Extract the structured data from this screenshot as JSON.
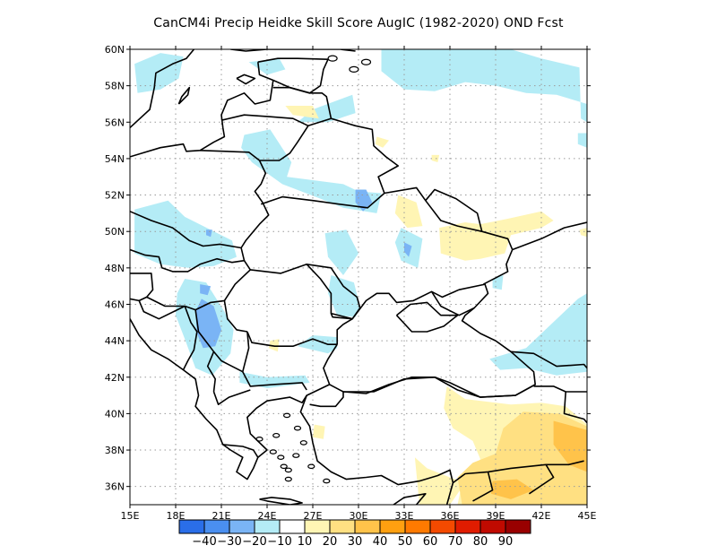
{
  "title": "CanCM4i Precip Heidke Skill Score AugIC (1982-2020) OND Fcst",
  "map": {
    "lon_range": [
      15,
      45
    ],
    "lat_range": [
      35,
      60
    ],
    "grid": "dotted",
    "lon_ticks": [
      {
        "value": 15,
        "label": "15E"
      },
      {
        "value": 18,
        "label": "18E"
      },
      {
        "value": 21,
        "label": "21E"
      },
      {
        "value": 24,
        "label": "24E"
      },
      {
        "value": 27,
        "label": "27E"
      },
      {
        "value": 30,
        "label": "30E"
      },
      {
        "value": 33,
        "label": "33E"
      },
      {
        "value": 36,
        "label": "36E"
      },
      {
        "value": 39,
        "label": "39E"
      },
      {
        "value": 42,
        "label": "42E"
      },
      {
        "value": 45,
        "label": "45E"
      }
    ],
    "lat_ticks": [
      {
        "value": 36,
        "label": "36N"
      },
      {
        "value": 38,
        "label": "38N"
      },
      {
        "value": 40,
        "label": "40N"
      },
      {
        "value": 42,
        "label": "42N"
      },
      {
        "value": 44,
        "label": "44N"
      },
      {
        "value": 46,
        "label": "46N"
      },
      {
        "value": 48,
        "label": "48N"
      },
      {
        "value": 50,
        "label": "50N"
      },
      {
        "value": 52,
        "label": "52N"
      },
      {
        "value": 54,
        "label": "54N"
      },
      {
        "value": 56,
        "label": "56N"
      },
      {
        "value": 58,
        "label": "58N"
      },
      {
        "value": 60,
        "label": "60N"
      }
    ]
  },
  "colorbar": {
    "bins": [
      {
        "color": "#2a6ee8"
      },
      {
        "color": "#4a8ff0"
      },
      {
        "color": "#7ab4f5"
      },
      {
        "color": "#b4ecf6"
      },
      {
        "color": "#ffffff"
      },
      {
        "color": "#fff5b4"
      },
      {
        "color": "#ffe082"
      },
      {
        "color": "#ffc34a"
      },
      {
        "color": "#ffa010"
      },
      {
        "color": "#ff7a00"
      },
      {
        "color": "#f44a00"
      },
      {
        "color": "#e01c00"
      },
      {
        "color": "#c00a00"
      },
      {
        "color": "#990000"
      }
    ],
    "labels": [
      "-40",
      "-30",
      "-20",
      "-10",
      "10",
      "20",
      "30",
      "40",
      "50",
      "60",
      "70",
      "80",
      "90"
    ]
  },
  "shading": {
    "colors": {
      "neg10": "#b4ecf6",
      "neg20": "#7ab4f5",
      "pos10": "#fff5b4",
      "pos20": "#ffe082",
      "pos30": "#ffc34a"
    },
    "regions": [
      {
        "level": "neg10",
        "pts": [
          [
            44.5,
            59.0
          ],
          [
            42,
            59.5
          ],
          [
            40,
            60
          ],
          [
            31.5,
            60
          ],
          [
            31.5,
            58.8
          ],
          [
            33,
            57.8
          ],
          [
            35,
            57.7
          ],
          [
            37,
            58.2
          ],
          [
            39,
            58.0
          ],
          [
            41,
            57.6
          ],
          [
            43,
            57.5
          ],
          [
            45,
            57.0
          ],
          [
            45,
            56.0
          ],
          [
            44.6,
            56.2
          ],
          [
            44.5,
            59.0
          ]
        ]
      },
      {
        "level": "neg10",
        "pts": [
          [
            15.3,
            59.2
          ],
          [
            17,
            59.8
          ],
          [
            18.5,
            59.6
          ],
          [
            18.2,
            58.4
          ],
          [
            17,
            57.8
          ],
          [
            15.5,
            57.6
          ]
        ]
      },
      {
        "level": "neg10",
        "pts": [
          [
            22.8,
            59.3
          ],
          [
            24.8,
            59.5
          ],
          [
            25.2,
            58.9
          ],
          [
            24,
            58.6
          ]
        ]
      },
      {
        "level": "neg10",
        "pts": [
          [
            26,
            56.0
          ],
          [
            27,
            56.7
          ],
          [
            29.6,
            57.5
          ],
          [
            29.8,
            56.5
          ],
          [
            28,
            56.0
          ]
        ]
      },
      {
        "level": "neg10",
        "pts": [
          [
            22.5,
            55.3
          ],
          [
            24.2,
            55.6
          ],
          [
            25.6,
            53.8
          ],
          [
            25.3,
            53.0
          ],
          [
            29,
            52.6
          ],
          [
            30,
            52.2
          ],
          [
            31.5,
            52.1
          ],
          [
            31.2,
            51.0
          ],
          [
            29,
            51.3
          ],
          [
            27.5,
            51.8
          ],
          [
            25,
            52.6
          ],
          [
            23,
            53.8
          ],
          [
            22.3,
            54.6
          ]
        ]
      },
      {
        "level": "neg20",
        "pts": [
          [
            29.8,
            52.3
          ],
          [
            30.5,
            52.3
          ],
          [
            30.9,
            51.6
          ],
          [
            30.3,
            51.1
          ],
          [
            29.8,
            51.6
          ]
        ]
      },
      {
        "level": "neg10",
        "pts": [
          [
            15.3,
            51.2
          ],
          [
            17.5,
            51.7
          ],
          [
            18.6,
            50.8
          ],
          [
            19.8,
            50.3
          ],
          [
            21.7,
            49.5
          ],
          [
            22,
            48.6
          ],
          [
            20.5,
            48.1
          ],
          [
            18.8,
            48.0
          ],
          [
            17,
            48.2
          ],
          [
            15.3,
            48.8
          ]
        ]
      },
      {
        "level": "neg20",
        "pts": [
          [
            20.0,
            50.1
          ],
          [
            20.4,
            50.1
          ],
          [
            20.3,
            49.7
          ],
          [
            20.0,
            49.8
          ]
        ]
      },
      {
        "level": "neg10",
        "pts": [
          [
            27.8,
            49.9
          ],
          [
            29.2,
            50.1
          ],
          [
            30,
            48.8
          ],
          [
            29,
            47.6
          ],
          [
            28,
            48.6
          ]
        ]
      },
      {
        "level": "neg10",
        "pts": [
          [
            32.8,
            50.2
          ],
          [
            34.2,
            49.6
          ],
          [
            33.9,
            48.0
          ],
          [
            32.8,
            48.4
          ],
          [
            32.4,
            49.4
          ]
        ]
      },
      {
        "level": "neg20",
        "pts": [
          [
            33.0,
            49.4
          ],
          [
            33.5,
            49.2
          ],
          [
            33.3,
            48.6
          ],
          [
            33.0,
            48.9
          ]
        ]
      },
      {
        "level": "neg10",
        "pts": [
          [
            28.2,
            47.6
          ],
          [
            29.7,
            47.2
          ],
          [
            30.1,
            45.9
          ],
          [
            29.8,
            45.3
          ],
          [
            28.6,
            45.4
          ],
          [
            28.0,
            46.6
          ]
        ]
      },
      {
        "level": "neg10",
        "pts": [
          [
            18.6,
            47.4
          ],
          [
            20,
            47.2
          ],
          [
            21.2,
            45.6
          ],
          [
            21.8,
            44.6
          ],
          [
            21.6,
            43.3
          ],
          [
            20.4,
            42.1
          ],
          [
            19.3,
            42.5
          ],
          [
            18.6,
            44.1
          ],
          [
            18.0,
            45.4
          ],
          [
            18.1,
            46.6
          ]
        ]
      },
      {
        "level": "neg20",
        "pts": [
          [
            19.7,
            46.3
          ],
          [
            20.5,
            45.9
          ],
          [
            21.0,
            44.6
          ],
          [
            20.6,
            43.7
          ],
          [
            19.8,
            43.6
          ],
          [
            19.4,
            44.4
          ],
          [
            19.3,
            45.6
          ]
        ]
      },
      {
        "level": "neg20",
        "pts": [
          [
            19.6,
            47.1
          ],
          [
            20.3,
            47.0
          ],
          [
            20.1,
            46.5
          ],
          [
            19.6,
            46.6
          ]
        ]
      },
      {
        "level": "neg10",
        "pts": [
          [
            22.2,
            42.3
          ],
          [
            24.0,
            42.0
          ],
          [
            26.5,
            42.1
          ],
          [
            26.8,
            41.7
          ],
          [
            24,
            41.4
          ],
          [
            22.2,
            41.7
          ]
        ]
      },
      {
        "level": "neg10",
        "pts": [
          [
            44.4,
            55.4
          ],
          [
            45,
            55.4
          ],
          [
            45,
            54.6
          ],
          [
            44.4,
            54.8
          ]
        ]
      },
      {
        "level": "neg10",
        "pts": [
          [
            38.8,
            47.4
          ],
          [
            39.5,
            47.6
          ],
          [
            39.4,
            46.8
          ],
          [
            38.8,
            46.9
          ]
        ]
      },
      {
        "level": "neg10",
        "pts": [
          [
            38.6,
            43.0
          ],
          [
            41,
            43.6
          ],
          [
            44.4,
            46.3
          ],
          [
            45,
            46.6
          ],
          [
            45,
            42.3
          ],
          [
            43,
            42.1
          ],
          [
            41,
            42.5
          ],
          [
            39.3,
            42.4
          ]
        ]
      },
      {
        "level": "neg10",
        "pts": [
          [
            26,
            43.7
          ],
          [
            28,
            43.3
          ],
          [
            28.6,
            43.6
          ],
          [
            28.6,
            44.2
          ],
          [
            27,
            44.3
          ]
        ]
      },
      {
        "level": "pos10",
        "pts": [
          [
            24.2,
            44.0
          ],
          [
            24.8,
            44.1
          ],
          [
            24.7,
            43.4
          ],
          [
            24.1,
            43.6
          ]
        ]
      },
      {
        "level": "pos10",
        "pts": [
          [
            25.2,
            56.9
          ],
          [
            27,
            56.9
          ],
          [
            27.4,
            56.2
          ],
          [
            25.7,
            56.4
          ]
        ]
      },
      {
        "level": "pos10",
        "pts": [
          [
            31.2,
            55.2
          ],
          [
            32,
            55.0
          ],
          [
            31.6,
            54.6
          ],
          [
            31.1,
            54.8
          ]
        ]
      },
      {
        "level": "pos10",
        "pts": [
          [
            34.8,
            54.2
          ],
          [
            35.3,
            54.2
          ],
          [
            35.2,
            53.8
          ],
          [
            34.8,
            53.9
          ]
        ]
      },
      {
        "level": "pos10",
        "pts": [
          [
            32.6,
            52.0
          ],
          [
            33.8,
            51.6
          ],
          [
            34.2,
            50.3
          ],
          [
            33.2,
            50.2
          ],
          [
            32.4,
            51.0
          ]
        ]
      },
      {
        "level": "pos10",
        "pts": [
          [
            35.3,
            50.2
          ],
          [
            37,
            50.5
          ],
          [
            38,
            50.4
          ],
          [
            39.8,
            50.7
          ],
          [
            42,
            51.1
          ],
          [
            42.8,
            50.6
          ],
          [
            42,
            50.2
          ],
          [
            40,
            49.8
          ],
          [
            39.6,
            48.8
          ],
          [
            38,
            48.5
          ],
          [
            37,
            48.4
          ],
          [
            35.4,
            48.8
          ]
        ]
      },
      {
        "level": "pos10",
        "pts": [
          [
            44.5,
            50.1
          ],
          [
            45,
            50.2
          ],
          [
            45,
            49.7
          ],
          [
            44.6,
            49.8
          ]
        ]
      },
      {
        "level": "pos10",
        "pts": [
          [
            33.7,
            37.6
          ],
          [
            34.5,
            37.0
          ],
          [
            36,
            36.5
          ],
          [
            37,
            36.2
          ],
          [
            36,
            35.0
          ],
          [
            34,
            35.0
          ]
        ]
      },
      {
        "level": "pos10",
        "pts": [
          [
            35.8,
            41.5
          ],
          [
            37.0,
            40.8
          ],
          [
            40,
            40.5
          ],
          [
            42,
            40.6
          ],
          [
            43.6,
            40.4
          ],
          [
            45,
            39.4
          ],
          [
            45,
            35
          ],
          [
            36.5,
            35
          ],
          [
            36.8,
            36.2
          ],
          [
            38,
            37.5
          ],
          [
            37.5,
            38.5
          ],
          [
            36.2,
            39.2
          ],
          [
            35.6,
            40.3
          ]
        ]
      },
      {
        "level": "pos20",
        "pts": [
          [
            40.8,
            40.1
          ],
          [
            43.2,
            40.0
          ],
          [
            45,
            39.3
          ],
          [
            45,
            35
          ],
          [
            36.8,
            35
          ],
          [
            36.5,
            36.5
          ],
          [
            37.5,
            37.3
          ],
          [
            39,
            37.8
          ],
          [
            39.5,
            39.2
          ]
        ]
      },
      {
        "level": "pos30",
        "pts": [
          [
            42.8,
            39.6
          ],
          [
            45,
            39.1
          ],
          [
            45,
            36.8
          ],
          [
            43.8,
            37.2
          ],
          [
            42.8,
            38.3
          ]
        ]
      },
      {
        "level": "pos30",
        "pts": [
          [
            38.8,
            36.3
          ],
          [
            40.4,
            36.4
          ],
          [
            41.5,
            35.8
          ],
          [
            40,
            35.3
          ],
          [
            38.7,
            35.6
          ]
        ]
      },
      {
        "level": "pos10",
        "pts": [
          [
            27.1,
            39.4
          ],
          [
            27.8,
            39.3
          ],
          [
            27.7,
            38.6
          ],
          [
            27.0,
            38.7
          ]
        ]
      }
    ]
  }
}
